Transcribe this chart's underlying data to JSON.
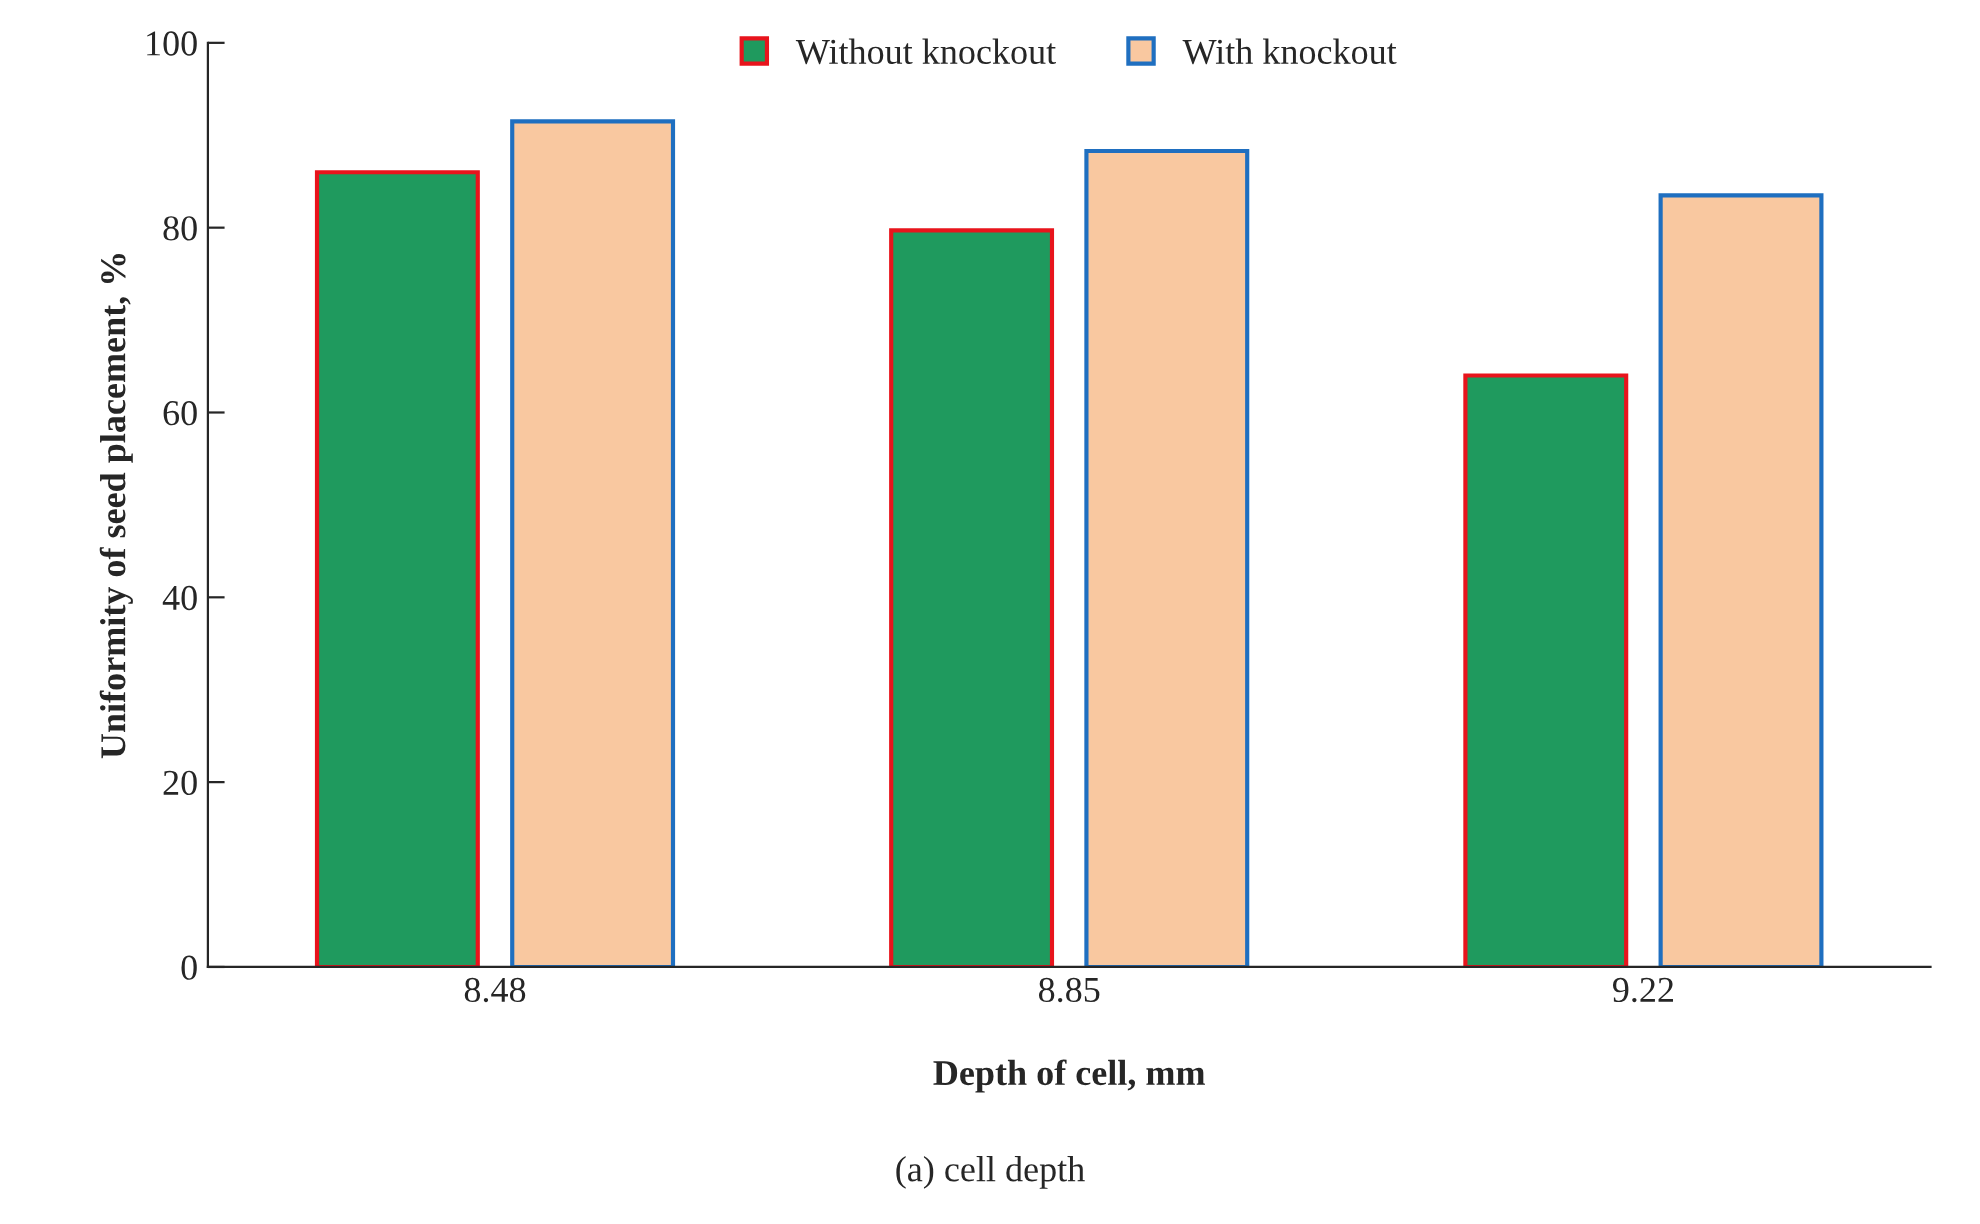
{
  "chart_data": {
    "type": "bar",
    "xlabel": "Depth of cell, mm",
    "ylabel": "Uniformity of seed placement, %",
    "categories": [
      "8.48",
      "8.85",
      "9.22"
    ],
    "series": [
      {
        "name": "Without knockout",
        "color": "#1f9a5e",
        "values": [
          86,
          79.7,
          64
        ]
      },
      {
        "name": "With knockout",
        "color": "#f9c8a0",
        "values": [
          91.5,
          88.3,
          83.5
        ]
      }
    ],
    "ylim": [
      0,
      100
    ],
    "yticks": [
      0,
      20,
      40,
      60,
      80,
      100
    ],
    "grid": false,
    "legend": "top",
    "annotations": [
      "(a) cell depth"
    ]
  }
}
